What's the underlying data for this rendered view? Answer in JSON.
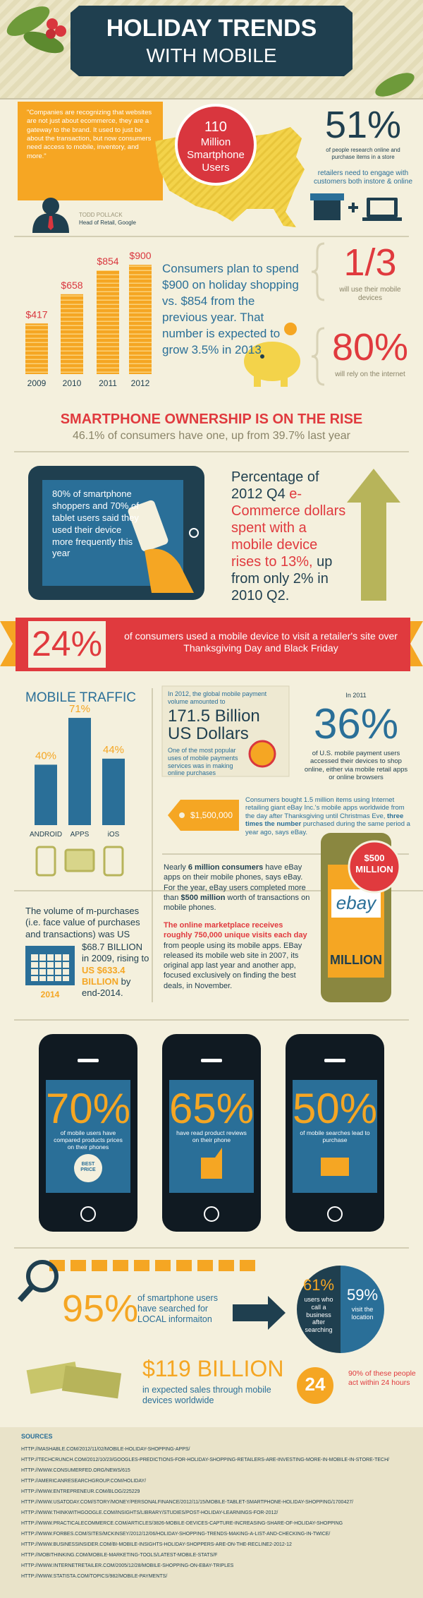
{
  "header": {
    "title": "HOLIDAY TRENDS",
    "subtitle": "WITH MOBILE"
  },
  "intro": {
    "quote": "\"Companies are recognizing that websites are not just about ecommerce, they are a gateway to the brand. It used to just be about the transaction, but now consumers need access to mobile, inventory, and more.\"",
    "person": "TODD POLLACK",
    "person_role": "Head of Retail, Google",
    "circle_number": "110",
    "circle_text": "Million Smartphone Users",
    "stat": "51%",
    "stat_text": "of people research online and purchase items in a store",
    "stat_note": "retailers need to engage with customers both instore & online"
  },
  "spending": {
    "coins": [
      {
        "year": "2009",
        "value": 417,
        "label": "$417"
      },
      {
        "year": "2010",
        "value": 658,
        "label": "$658"
      },
      {
        "year": "2011",
        "value": 854,
        "label": "$854"
      },
      {
        "year": "2012",
        "value": 900,
        "label": "$900"
      }
    ],
    "text": "Consumers plan to spend $900 on holiday shopping vs. $854 from the previous year. That number is expected to grow 3.5% in 2013",
    "third": "1/3",
    "third_text": "will use their mobile devices",
    "eighty": "80%",
    "eighty_text": "will rely on the internet"
  },
  "ownership": {
    "title": "SMARTPHONE OWNERSHIP IS ON THE RISE",
    "text": "46.1% of consumers have one, up from 39.7% last year"
  },
  "tablet": {
    "screen_text": "80% of smartphone shoppers and 70% of tablet users said they used their device more frequently this year",
    "text_1": "Percentage of 2012 Q4",
    "text_red": "e-Commerce dollars spent with a mobile device rises to 13%,",
    "text_2": "up from only 2% in 2010 Q2."
  },
  "banner": {
    "number": "24%",
    "text": "of consumers used a mobile device to visit a retailer's site over Thanksgiving Day and Black Friday"
  },
  "traffic": {
    "title": "MOBILE TRAFFIC",
    "bars": [
      {
        "name": "ANDROID",
        "value": 40,
        "label": "40%"
      },
      {
        "name": "APPS",
        "value": 71,
        "label": "71%"
      },
      {
        "name": "iOS",
        "value": 44,
        "label": "44%"
      }
    ]
  },
  "payments": {
    "intro": "In 2012, the global mobile payment volume amounted to",
    "amount": "171.5 Billion US Dollars",
    "note": "One of the most popular uses of mobile payments services was in making online purchases"
  },
  "usage": {
    "year": "In 2011",
    "stat": "36%",
    "text": "of U.S. mobile payment users accessed their devices to shop online, either via mobile retail apps or online browsers"
  },
  "ebay_tag": {
    "amount": "$1,500,000",
    "text": "Consumers bought 1.5 million items using Internet retailing giant eBay Inc.'s mobile apps worldwide from the day after Thanksgiving until Christmas Eve,",
    "text_bold": "three times the number",
    "text_end": "purchased during the same period a year ago, says eBay."
  },
  "purchases": {
    "text_1": "The volume of m-purchases (i.e. face value of purchases and transactions) was US",
    "text_2": "$68.7 BILLION in 2009, rising to",
    "text_orange": "US $633.4 BILLION",
    "text_3": "by end-2014.",
    "calendar_year": "2014"
  },
  "ebay": {
    "text_1a": "Nearly",
    "text_1b": "6 million consumers",
    "text_1c": "have eBay apps on their mobile phones, says eBay. For the year, eBay users completed more than",
    "text_1d": "$500 million",
    "text_1e": "worth of transactions on mobile phones.",
    "text_2a": "The online marketplace receives roughly 750,000 unique visits each day",
    "text_2b": "from people using its mobile apps. EBay released its mobile web site in 2007, its original app last year and another app, focused exclusively on finding the best deals, in November.",
    "badge": "$500 MILLION",
    "logo": "ebay",
    "phone_label": "MILLION"
  },
  "phones": [
    {
      "stat": "70%",
      "text": "of mobile users have compared products prices on their phones",
      "icon_text": "BEST PRICE"
    },
    {
      "stat": "65%",
      "text": "have read product reviews on their phone"
    },
    {
      "stat": "50%",
      "text": "of mobile searches lead to purchase"
    }
  ],
  "local": {
    "stat": "95%",
    "text": "of smartphone users have searched for LOCAL informaiton",
    "call_stat": "61%",
    "call_text": "users who call a business after searching",
    "visit_stat": "59%",
    "visit_text": "visit the location",
    "hours": "24",
    "hours_text": "90% of these people act within 24 hours"
  },
  "sales": {
    "amount": "$119 BILLION",
    "text": "in expected sales through mobile devices worldwide"
  },
  "sources": {
    "title": "SOURCES",
    "links": [
      "HTTP://MASHABLE.COM/2012/11/02/MOBILE-HOLIDAY-SHOPPING-APPS/",
      "HTTP://TECHCRUNCH.COM/2012/10/23/GOOGLES-PREDICTIONS-FOR-HOLIDAY-SHOPPING-RETAILERS-ARE-INVESTING-MORE-IN-MOBILE-IN-STORE-TECH/",
      "HTTP://WWW.CONSUMERFED.ORG/NEWS/615",
      "HTTP://AMERICANRESEARCHGROUP.COM/HOLIDAY/",
      "HTTP://WWW.ENTREPRENEUR.COM/BLOG/225229",
      "HTTP://WWW.USATODAY.COM/STORY/MONEY/PERSONALFINANCE/2012/11/15/MOBILE-TABLET-SMARTPHONE-HOLIDAY-SHOPPING/1700427/",
      "HTTP://WWW.THINKWITHGOOGLE.COM/INSIGHTS/LIBRARY/STUDIES/POST-HOLIDAY-LEARNINGS-FOR-2012/",
      "HTTP://WWW.PRACTICALECOMMERCE.COM/ARTICLES/3826-MOBILE-DEVICES-CAPTURE-INCREASING-SHARE-OF-HOLIDAY-SHOPPING",
      "HTTP://WWW.FORBES.COM/SITES/MCKINSEY/2012/12/06/HOLIDAY-SHOPPING-TRENDS-MAKING-A-LIST-AND-CHECKING-IN-TWICE/",
      "HTTP://WWW.BUSINESSINSIDER.COM/BI-MOBILE-INSIGHTS-HOLIDAY-SHOPPERS-ARE-ON-THE-RECLINE2-2012-12",
      "HTTP://MOBITHINKING.COM/MOBILE-MARKETING-TOOLS/LATEST-MOBILE-STATS/F",
      "HTTP://WWW.INTERNETRETAILER.COM/2005/12/28/MOBILE-SHOPPING-ON-EBAY-TRIPLES",
      "HTTP://WWW.STATISTA.COM/TOPICS/982/MOBILE-PAYMENTS/"
    ]
  }
}
